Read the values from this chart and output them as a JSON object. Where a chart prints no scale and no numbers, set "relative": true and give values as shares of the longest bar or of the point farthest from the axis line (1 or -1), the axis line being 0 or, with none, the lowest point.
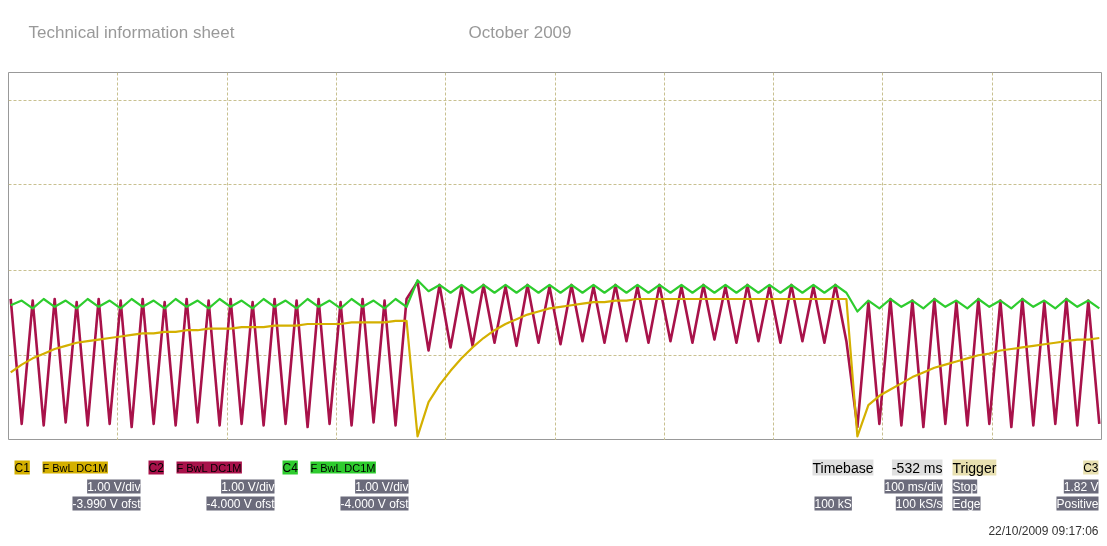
{
  "chart_data": {
    "type": "line",
    "relative": true,
    "title": "Technical information sheet",
    "subtitle": "October 2009",
    "categories": [
      null,
      null,
      null,
      null,
      null,
      null,
      null,
      null,
      null,
      null,
      null,
      null,
      null,
      null,
      null,
      null,
      null,
      null,
      null,
      null,
      null,
      null,
      null,
      null,
      null,
      null,
      null,
      null,
      null,
      null,
      null,
      null,
      null,
      null,
      null,
      null,
      null,
      null,
      null,
      null,
      null,
      null,
      null,
      null,
      null,
      null,
      null,
      null,
      null,
      null,
      null,
      null,
      null,
      null,
      null,
      null,
      null,
      null,
      null,
      null,
      null,
      null,
      null,
      null,
      null,
      null,
      null,
      null,
      null,
      null,
      null,
      null,
      null,
      null,
      null,
      null,
      null,
      null,
      null,
      null,
      null,
      null,
      null,
      null,
      null,
      null,
      null,
      null,
      null,
      null,
      null,
      null,
      null,
      null,
      null,
      null,
      null,
      null,
      null,
      null
    ],
    "series": [
      {
        "name": "C2",
        "color": "#a8124a",
        "values": [
          0.88,
          0.08,
          0.87,
          0.07,
          0.88,
          0.09,
          0.86,
          0.07,
          0.88,
          0.08,
          0.87,
          0.06,
          0.88,
          0.08,
          0.86,
          0.07,
          0.88,
          0.09,
          0.87,
          0.07,
          0.88,
          0.08,
          0.86,
          0.07,
          0.88,
          0.08,
          0.87,
          0.06,
          0.88,
          0.08,
          0.86,
          0.07,
          0.88,
          0.09,
          0.87,
          0.07,
          0.88,
          0.99,
          0.55,
          0.97,
          0.57,
          0.96,
          0.58,
          0.97,
          0.6,
          0.96,
          0.58,
          0.97,
          0.6,
          0.96,
          0.59,
          0.97,
          0.61,
          0.96,
          0.6,
          0.97,
          0.61,
          0.96,
          0.6,
          0.97,
          0.61,
          0.96,
          0.6,
          0.97,
          0.62,
          0.96,
          0.6,
          0.97,
          0.61,
          0.96,
          0.6,
          0.97,
          0.61,
          0.96,
          0.6,
          0.97,
          0.61,
          0.06,
          0.86,
          0.08,
          0.88,
          0.07,
          0.87,
          0.06,
          0.88,
          0.08,
          0.86,
          0.07,
          0.88,
          0.08,
          0.87,
          0.06,
          0.88,
          0.07,
          0.86,
          0.08,
          0.88,
          0.07,
          0.87,
          0.08
        ]
      },
      {
        "name": "C4",
        "color": "#2ecc2e",
        "values": [
          0.84,
          0.87,
          0.82,
          0.88,
          0.83,
          0.87,
          0.82,
          0.88,
          0.83,
          0.87,
          0.82,
          0.88,
          0.83,
          0.87,
          0.82,
          0.88,
          0.83,
          0.87,
          0.82,
          0.88,
          0.83,
          0.87,
          0.82,
          0.88,
          0.83,
          0.87,
          0.82,
          0.88,
          0.83,
          0.87,
          0.82,
          0.88,
          0.83,
          0.87,
          0.82,
          0.88,
          0.83,
          1.0,
          0.93,
          0.97,
          0.92,
          0.97,
          0.92,
          0.97,
          0.92,
          0.97,
          0.92,
          0.97,
          0.92,
          0.97,
          0.92,
          0.97,
          0.92,
          0.97,
          0.92,
          0.97,
          0.92,
          0.97,
          0.92,
          0.97,
          0.92,
          0.97,
          0.92,
          0.97,
          0.92,
          0.97,
          0.92,
          0.97,
          0.92,
          0.97,
          0.92,
          0.97,
          0.92,
          0.97,
          0.92,
          0.97,
          0.92,
          0.8,
          0.87,
          0.82,
          0.88,
          0.83,
          0.87,
          0.82,
          0.88,
          0.83,
          0.87,
          0.82,
          0.88,
          0.83,
          0.87,
          0.82,
          0.88,
          0.83,
          0.87,
          0.82,
          0.88,
          0.83,
          0.87,
          0.82
        ]
      },
      {
        "name": "C1",
        "color": "#d4b000",
        "values": [
          0.41,
          0.46,
          0.5,
          0.53,
          0.56,
          0.58,
          0.6,
          0.61,
          0.62,
          0.63,
          0.64,
          0.65,
          0.66,
          0.66,
          0.67,
          0.67,
          0.68,
          0.68,
          0.69,
          0.69,
          0.69,
          0.7,
          0.7,
          0.7,
          0.71,
          0.71,
          0.71,
          0.72,
          0.72,
          0.72,
          0.72,
          0.73,
          0.73,
          0.73,
          0.73,
          0.74,
          0.74,
          0.0,
          0.22,
          0.33,
          0.42,
          0.5,
          0.57,
          0.63,
          0.68,
          0.72,
          0.75,
          0.78,
          0.8,
          0.82,
          0.83,
          0.84,
          0.85,
          0.86,
          0.86,
          0.87,
          0.87,
          0.88,
          0.88,
          0.88,
          0.88,
          0.88,
          0.88,
          0.88,
          0.88,
          0.88,
          0.88,
          0.88,
          0.88,
          0.88,
          0.88,
          0.88,
          0.88,
          0.88,
          0.88,
          0.88,
          0.88,
          0.0,
          0.2,
          0.26,
          0.3,
          0.34,
          0.38,
          0.41,
          0.44,
          0.46,
          0.48,
          0.5,
          0.52,
          0.53,
          0.55,
          0.56,
          0.57,
          0.58,
          0.59,
          0.6,
          0.61,
          0.62,
          0.62,
          0.63
        ]
      }
    ],
    "grid": true,
    "legend": "bottom left",
    "marker": "none",
    "line_style": "solid",
    "annotations": [
      "F BwL DC1M",
      "1.00 V/div",
      "-3.990 V ofst",
      "F BwL DC1M",
      "1.00 V/div",
      "-4.000 V ofst",
      "F BwL DC1M",
      "1.00 V/div",
      "-4.000 V ofst",
      "Timebase",
      "-532 ms",
      "100 ms/div",
      "100 kS",
      "100 kS/s",
      "Trigger",
      "C3",
      "Stop",
      "1.82 V",
      "Edge",
      "Positive",
      "22/10/2009 09:17:06"
    ]
  }
}
